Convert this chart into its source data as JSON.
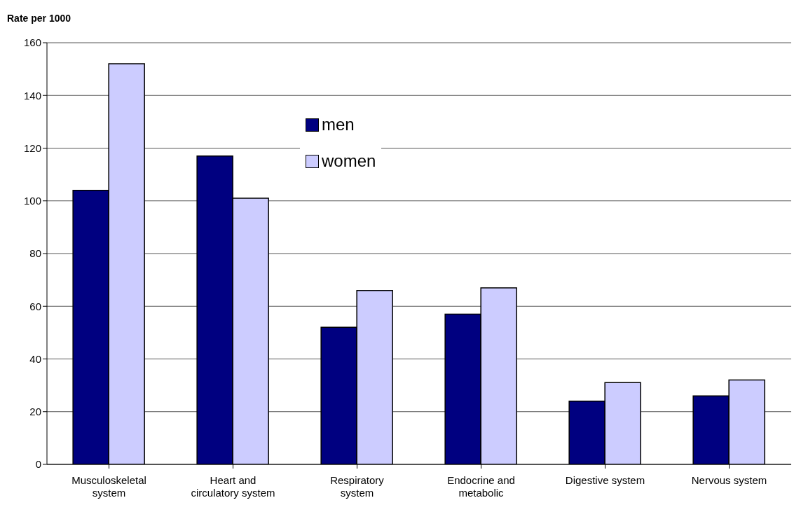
{
  "chart_data": {
    "type": "bar",
    "ylabel": "Rate per 1000",
    "categories": [
      "Musculoskeletal system",
      "Heart and circulatory system",
      "Respiratory system",
      "Endocrine and metabolic",
      "Digestive system",
      "Nervous system"
    ],
    "series": [
      {
        "name": "men",
        "color": "#000080",
        "values": [
          104,
          117,
          52,
          57,
          24,
          26
        ]
      },
      {
        "name": "women",
        "color": "#ccccff",
        "values": [
          152,
          101,
          66,
          67,
          31,
          32
        ]
      }
    ],
    "ylim": [
      0,
      160
    ],
    "yticks": [
      0,
      20,
      40,
      60,
      80,
      100,
      120,
      140,
      160
    ],
    "grid": "y",
    "legend": "top"
  }
}
